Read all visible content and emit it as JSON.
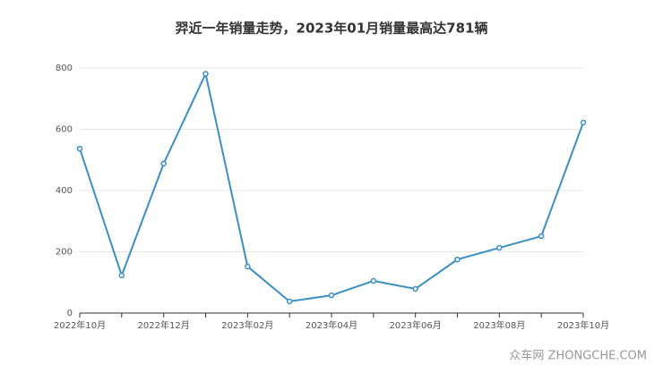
{
  "chart_data": {
    "type": "line",
    "title": "羿近一年销量走势，2023年01月销量最高达781辆",
    "categories": [
      "2022年10月",
      null,
      "2022年12月",
      null,
      "2023年02月",
      null,
      "2023年04月",
      null,
      "2023年06月",
      null,
      "2023年08月",
      null,
      "2023年10月"
    ],
    "series": [
      {
        "name": "销量",
        "color": "#3a8fc4",
        "values": [
          537,
          123,
          488,
          781,
          152,
          38,
          58,
          105,
          79,
          175,
          213,
          251,
          622
        ]
      }
    ],
    "ylim": [
      0,
      800
    ],
    "yticks": [
      0,
      200,
      400,
      600,
      800
    ],
    "grid": true,
    "watermark": "众车网 ZHONGCHE.COM"
  }
}
